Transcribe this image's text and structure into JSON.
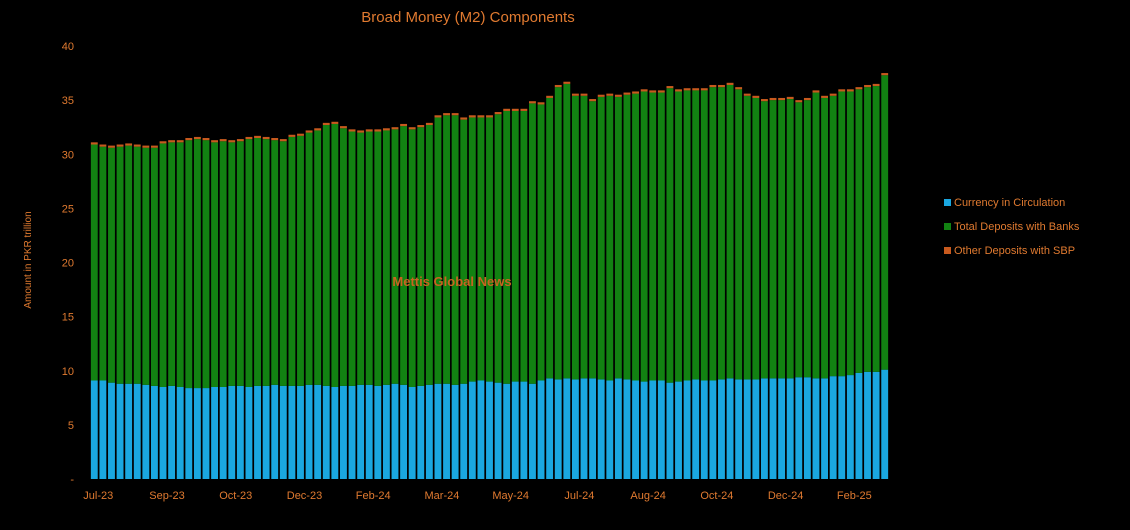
{
  "chart_data": {
    "type": "bar",
    "stacked": true,
    "title": "Broad Money (M2) Components",
    "ylabel": "Amount in PKR trillion",
    "xlabel": "",
    "watermark": "Mettis Global News",
    "ylim": [
      0,
      40
    ],
    "yticks": [
      "-",
      "5",
      "10",
      "15",
      "20",
      "25",
      "30",
      "35",
      "40"
    ],
    "xtick_labels": [
      "Jul-23",
      "Sep-23",
      "Oct-23",
      "Dec-23",
      "Feb-24",
      "Mar-24",
      "May-24",
      "Jul-24",
      "Aug-24",
      "Oct-24",
      "Dec-24",
      "Feb-25"
    ],
    "xtick_positions": [
      0,
      8,
      16,
      24,
      32,
      40,
      48,
      56,
      64,
      72,
      80,
      88
    ],
    "grid": false,
    "legend_position": "right",
    "background": "#000000",
    "text_color": "#E07A30",
    "series": [
      {
        "name": "Currency in Circulation",
        "color": "#1AA7E0",
        "values": [
          9.1,
          9.1,
          8.9,
          8.8,
          8.8,
          8.8,
          8.7,
          8.6,
          8.5,
          8.6,
          8.5,
          8.4,
          8.4,
          8.4,
          8.5,
          8.5,
          8.6,
          8.6,
          8.5,
          8.6,
          8.6,
          8.7,
          8.6,
          8.6,
          8.6,
          8.7,
          8.7,
          8.6,
          8.5,
          8.6,
          8.6,
          8.7,
          8.7,
          8.6,
          8.7,
          8.8,
          8.7,
          8.5,
          8.6,
          8.7,
          8.8,
          8.8,
          8.7,
          8.8,
          9.0,
          9.1,
          9.0,
          8.9,
          8.8,
          9.0,
          9.0,
          8.8,
          9.1,
          9.3,
          9.2,
          9.3,
          9.2,
          9.3,
          9.3,
          9.2,
          9.1,
          9.3,
          9.2,
          9.1,
          9.0,
          9.1,
          9.1,
          8.9,
          9.0,
          9.1,
          9.2,
          9.1,
          9.1,
          9.2,
          9.3,
          9.2,
          9.2,
          9.2,
          9.3,
          9.3,
          9.3,
          9.3,
          9.4,
          9.4,
          9.3,
          9.3,
          9.5,
          9.5,
          9.6,
          9.8,
          9.9,
          9.9,
          10.1
        ]
      },
      {
        "name": "Total Deposits with Banks",
        "color": "#128212",
        "values": [
          21.8,
          21.6,
          21.7,
          21.9,
          22.0,
          21.9,
          21.9,
          22.0,
          22.5,
          22.5,
          22.6,
          22.9,
          23.0,
          22.9,
          22.6,
          22.7,
          22.5,
          22.6,
          22.9,
          22.9,
          22.8,
          22.6,
          22.6,
          23.0,
          23.1,
          23.3,
          23.5,
          24.1,
          24.3,
          23.8,
          23.5,
          23.3,
          23.4,
          23.5,
          23.5,
          23.5,
          23.9,
          23.8,
          23.9,
          24.0,
          24.6,
          24.8,
          24.9,
          24.4,
          24.4,
          24.3,
          24.4,
          24.8,
          25.2,
          25.0,
          25.0,
          25.9,
          25.5,
          25.9,
          27.0,
          27.2,
          26.2,
          26.1,
          25.6,
          26.1,
          26.3,
          26.0,
          26.3,
          26.5,
          26.8,
          26.6,
          26.6,
          27.2,
          26.8,
          26.8,
          26.7,
          26.8,
          27.1,
          27.0,
          27.1,
          26.8,
          26.2,
          26.0,
          25.6,
          25.7,
          25.7,
          25.8,
          25.4,
          25.6,
          26.4,
          25.9,
          25.9,
          26.3,
          26.2,
          26.2,
          26.3,
          26.4,
          27.2
        ]
      },
      {
        "name": "Other Deposits with SBP",
        "color": "#C85A1E",
        "values": [
          0.2,
          0.2,
          0.2,
          0.2,
          0.2,
          0.2,
          0.2,
          0.2,
          0.2,
          0.2,
          0.2,
          0.2,
          0.2,
          0.2,
          0.2,
          0.2,
          0.2,
          0.2,
          0.2,
          0.2,
          0.2,
          0.2,
          0.2,
          0.2,
          0.2,
          0.2,
          0.2,
          0.2,
          0.2,
          0.2,
          0.2,
          0.2,
          0.2,
          0.2,
          0.2,
          0.2,
          0.2,
          0.2,
          0.2,
          0.2,
          0.2,
          0.2,
          0.2,
          0.2,
          0.2,
          0.2,
          0.2,
          0.2,
          0.2,
          0.2,
          0.2,
          0.2,
          0.2,
          0.2,
          0.2,
          0.2,
          0.2,
          0.2,
          0.2,
          0.2,
          0.2,
          0.2,
          0.2,
          0.2,
          0.2,
          0.2,
          0.2,
          0.2,
          0.2,
          0.2,
          0.2,
          0.2,
          0.2,
          0.2,
          0.2,
          0.2,
          0.2,
          0.2,
          0.2,
          0.2,
          0.2,
          0.2,
          0.2,
          0.2,
          0.2,
          0.2,
          0.2,
          0.2,
          0.2,
          0.2,
          0.2,
          0.2,
          0.2
        ]
      }
    ]
  }
}
